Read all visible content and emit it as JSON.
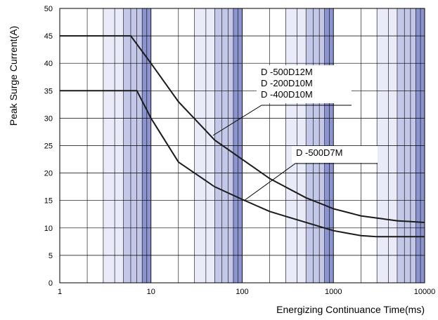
{
  "chart_data": {
    "type": "line",
    "xlabel": "Energizing Continuance Time(ms)",
    "ylabel": "Peak Surge Current(A)",
    "x_scale": "log",
    "xlim": [
      1,
      10000
    ],
    "ylim": [
      0,
      50
    ],
    "x_ticks": [
      "1",
      "10",
      "100",
      "1000",
      "10000"
    ],
    "y_ticks": [
      "0",
      "5",
      "10",
      "15",
      "20",
      "25",
      "30",
      "35",
      "40",
      "45",
      "50"
    ],
    "grid": true,
    "series": [
      {
        "name": "D -500D12M\nD -200D10M\nD -400D10M",
        "x": [
          1,
          6,
          10,
          20,
          50,
          100,
          200,
          500,
          1000,
          2000,
          5000,
          10000
        ],
        "y": [
          45,
          45,
          40,
          33,
          26,
          22.5,
          19,
          15.5,
          13.5,
          12.2,
          11.3,
          11
        ]
      },
      {
        "name": "D -500D7M",
        "x": [
          1,
          7,
          10,
          20,
          50,
          100,
          200,
          500,
          1000,
          2000,
          3000,
          10000
        ],
        "y": [
          35,
          35,
          30,
          22,
          17.5,
          15.2,
          13,
          11,
          9.5,
          8.6,
          8.4,
          8.4
        ]
      }
    ],
    "annotations": [
      {
        "lines": [
          "D -500D12M",
          "D -200D10M",
          "D -400D10M"
        ]
      },
      {
        "lines": [
          "D -500D7M"
        ]
      }
    ]
  },
  "colors": {
    "band_light": "#e9ecf8",
    "band_mid": "#c3c8e8",
    "band_dark": "#8c94cf",
    "curve": "#1a1a1a",
    "grid": "#000000"
  }
}
